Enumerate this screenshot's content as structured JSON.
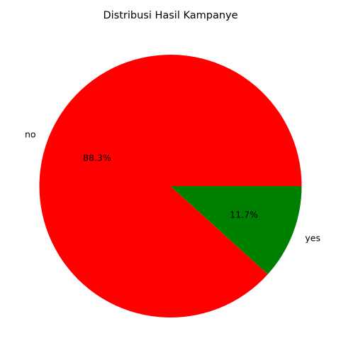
{
  "chart_data": {
    "type": "pie",
    "title": "Distribusi Hasil Kampanye",
    "slices": [
      {
        "label": "no",
        "value": 88.3,
        "percent_label": "88.3%",
        "color": "#ff0000"
      },
      {
        "label": "yes",
        "value": 11.7,
        "percent_label": "11.7%",
        "color": "#008000"
      }
    ],
    "start_angle_deg": 0,
    "direction": "counterclockwise",
    "legend": "none"
  }
}
